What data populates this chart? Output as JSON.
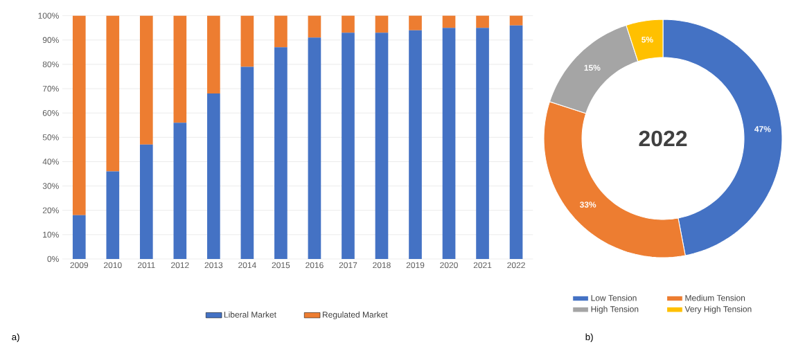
{
  "chart_data": [
    {
      "type": "bar",
      "stacked": true,
      "categories": [
        "2009",
        "2010",
        "2011",
        "2012",
        "2013",
        "2014",
        "2015",
        "2016",
        "2017",
        "2018",
        "2019",
        "2020",
        "2021",
        "2022"
      ],
      "series": [
        {
          "name": "Liberal Market",
          "color": "#4472c4",
          "values": [
            18,
            36,
            47,
            56,
            68,
            79,
            87,
            91,
            93,
            93,
            94,
            95,
            95,
            96
          ]
        },
        {
          "name": "Regulated Market",
          "color": "#ed7d31",
          "values": [
            82,
            64,
            53,
            44,
            32,
            21,
            13,
            9,
            7,
            7,
            6,
            5,
            5,
            4
          ]
        }
      ],
      "ylim": [
        0,
        100
      ],
      "yticks": [
        {
          "value": 0,
          "label": "0%"
        },
        {
          "value": 10,
          "label": "10%"
        },
        {
          "value": 20,
          "label": "20%"
        },
        {
          "value": 30,
          "label": "30%"
        },
        {
          "value": 40,
          "label": "40%"
        },
        {
          "value": 50,
          "label": "50%"
        },
        {
          "value": 60,
          "label": "60%"
        },
        {
          "value": 70,
          "label": "70%"
        },
        {
          "value": 80,
          "label": "80%"
        },
        {
          "value": 90,
          "label": "90%"
        },
        {
          "value": 100,
          "label": "100%"
        }
      ],
      "grid": "y",
      "legend": "bottom",
      "annotations": [
        "a)"
      ]
    },
    {
      "type": "donut",
      "title": "2022",
      "categories": [
        "Low Tension",
        "Medium Tension",
        "High Tension",
        "Very High Tension"
      ],
      "values": [
        47,
        33,
        15,
        5
      ],
      "colors": [
        "#4472c4",
        "#ed7d31",
        "#a5a5a5",
        "#ffc000"
      ],
      "value_labels": [
        "47%",
        "33%",
        "15%",
        "5%"
      ],
      "legend": "bottom",
      "annotations": [
        "b)"
      ]
    }
  ]
}
